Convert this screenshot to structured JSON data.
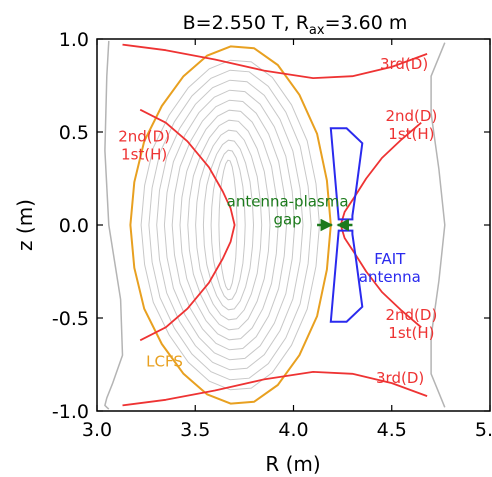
{
  "chart_data": {
    "type": "line",
    "title": {
      "prefix": "B=2.550 T, R",
      "subscript": "ax",
      "suffix": "=3.60 m"
    },
    "xlabel": "R (m)",
    "ylabel": "z (m)",
    "xlim": [
      3.0,
      5.0
    ],
    "ylim": [
      -1.0,
      1.0
    ],
    "xticks": [
      "3.0",
      "3.5",
      "4.0",
      "4.5",
      "5.0"
    ],
    "yticks": [
      "1.0",
      "0.5",
      "0.0",
      "-0.5",
      "-1.0"
    ],
    "xtick_values": [
      3.0,
      3.5,
      4.0,
      4.5,
      5.0
    ],
    "ytick_values": [
      1.0,
      0.5,
      0.0,
      -0.5,
      -1.0
    ],
    "grid": false,
    "colors": {
      "resonance": "#ee3333",
      "lcfs": "#e8a020",
      "flux_surfaces": "#c8c8c8",
      "vessel": "#b4b4b4",
      "antenna": "#2a2aee",
      "gap": "#1c7a1c"
    },
    "series": [
      {
        "name": "LCFS",
        "color": "#e8a020",
        "x": [
          4.19,
          4.17,
          4.12,
          4.03,
          3.92,
          3.8,
          3.68,
          3.56,
          3.44,
          3.33,
          3.24,
          3.19,
          3.17,
          3.19,
          3.24,
          3.33,
          3.44,
          3.56,
          3.68,
          3.8,
          3.92,
          4.03,
          4.12,
          4.17,
          4.19
        ],
        "y": [
          0.0,
          0.24,
          0.49,
          0.7,
          0.86,
          0.95,
          0.96,
          0.91,
          0.8,
          0.64,
          0.45,
          0.23,
          0.0,
          -0.23,
          -0.45,
          -0.64,
          -0.8,
          -0.91,
          -0.96,
          -0.95,
          -0.86,
          -0.7,
          -0.49,
          -0.24,
          0.0
        ]
      },
      {
        "name": "2nd(D) 1st(H)",
        "color": "#ee3333",
        "x": [
          3.22,
          3.35,
          3.46,
          3.57,
          3.64,
          3.68,
          3.7,
          3.68,
          3.64,
          3.57,
          3.46,
          3.35,
          3.22
        ],
        "y": [
          0.62,
          0.55,
          0.45,
          0.31,
          0.18,
          0.09,
          0.0,
          -0.09,
          -0.18,
          -0.31,
          -0.45,
          -0.55,
          -0.62
        ]
      },
      {
        "name": "2nd(D) 1st(H)",
        "color": "#ee3333",
        "x": [
          4.65,
          4.55,
          4.45,
          4.37,
          4.31,
          4.26,
          4.24,
          4.26,
          4.31,
          4.37,
          4.45,
          4.55,
          4.65
        ],
        "y": [
          0.55,
          0.46,
          0.36,
          0.25,
          0.15,
          0.07,
          0.0,
          -0.07,
          -0.15,
          -0.25,
          -0.36,
          -0.46,
          -0.55
        ]
      },
      {
        "name": "3rd(D)",
        "color": "#ee3333",
        "x": [
          3.13,
          3.35,
          3.6,
          3.85,
          4.1,
          4.3,
          4.5,
          4.68
        ],
        "y": [
          0.97,
          0.94,
          0.89,
          0.83,
          0.79,
          0.8,
          0.85,
          0.92
        ]
      },
      {
        "name": "3rd(D)",
        "color": "#ee3333",
        "x": [
          3.13,
          3.35,
          3.6,
          3.85,
          4.1,
          4.3,
          4.5,
          4.68
        ],
        "y": [
          -0.97,
          -0.94,
          -0.89,
          -0.83,
          -0.79,
          -0.8,
          -0.85,
          -0.92
        ]
      }
    ],
    "flux_surfaces": {
      "axis": [
        3.68,
        0.0
      ],
      "fractions": [
        0.09,
        0.17,
        0.25,
        0.33,
        0.41,
        0.49,
        0.57,
        0.65,
        0.73,
        0.81,
        0.89
      ]
    },
    "vessel_left": {
      "x": [
        3.06,
        3.05,
        3.04,
        3.06,
        3.12,
        3.13,
        3.08,
        3.05,
        3.04,
        3.05,
        3.06
      ],
      "y": [
        0.99,
        0.8,
        0.4,
        0.0,
        -0.4,
        -0.7,
        -0.85,
        -0.93,
        -0.97,
        -0.98,
        -0.99
      ]
    },
    "vessel_right": {
      "x": [
        4.77,
        4.7,
        4.7,
        4.74,
        4.77,
        4.74,
        4.7,
        4.7,
        4.77
      ],
      "y": [
        0.98,
        0.8,
        0.6,
        0.3,
        0.0,
        -0.3,
        -0.6,
        -0.8,
        -0.98
      ]
    },
    "antenna": [
      {
        "x": [
          4.19,
          4.27,
          4.35,
          4.32,
          4.3,
          4.3,
          4.23,
          4.19
        ],
        "y": [
          0.52,
          0.52,
          0.44,
          0.2,
          0.05,
          0.03,
          0.03,
          0.52
        ]
      },
      {
        "x": [
          4.19,
          4.27,
          4.35,
          4.32,
          4.3,
          4.3,
          4.23,
          4.19
        ],
        "y": [
          -0.52,
          -0.52,
          -0.44,
          -0.2,
          -0.05,
          -0.03,
          -0.03,
          -0.52
        ]
      }
    ],
    "gap_arrows": [
      {
        "from": [
          4.12,
          0.0
        ],
        "to": [
          4.195,
          0.0
        ]
      },
      {
        "from": [
          4.3,
          0.0
        ],
        "to": [
          4.225,
          0.0
        ]
      }
    ],
    "annotations": [
      {
        "lines": [
          "2nd(D)",
          "1st(H)"
        ],
        "at": [
          3.24,
          0.45
        ],
        "color": "#ee3333",
        "anchor": "middle"
      },
      {
        "lines": [
          "2nd(D)",
          "1st(H)"
        ],
        "at": [
          4.6,
          0.56
        ],
        "color": "#ee3333",
        "anchor": "middle"
      },
      {
        "lines": [
          "2nd(D)",
          "1st(H)"
        ],
        "at": [
          4.6,
          -0.51
        ],
        "color": "#ee3333",
        "anchor": "middle"
      },
      {
        "lines": [
          "3rd(D)"
        ],
        "at": [
          4.44,
          0.84
        ],
        "color": "#ee3333",
        "anchor": "start"
      },
      {
        "lines": [
          "3rd(D)"
        ],
        "at": [
          4.42,
          -0.85
        ],
        "color": "#ee3333",
        "anchor": "start"
      },
      {
        "lines": [
          "antenna-plasma",
          "gap"
        ],
        "at": [
          3.97,
          0.1
        ],
        "color": "#1c7a1c",
        "anchor": "middle"
      },
      {
        "lines": [
          "FAIT",
          "antenna"
        ],
        "at": [
          4.49,
          -0.21
        ],
        "color": "#2a2aee",
        "anchor": "middle"
      },
      {
        "lines": [
          "LCFS"
        ],
        "at": [
          3.25,
          -0.76
        ],
        "color": "#e8a020",
        "anchor": "start"
      }
    ]
  }
}
